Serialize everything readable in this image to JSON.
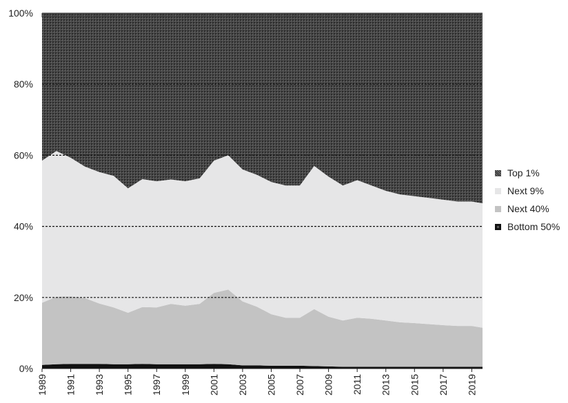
{
  "chart_data": {
    "type": "area",
    "stacked": true,
    "percent": true,
    "x": [
      1989,
      1990,
      1991,
      1992,
      1993,
      1994,
      1995,
      1996,
      1997,
      1998,
      1999,
      2000,
      2001,
      2002,
      2003,
      2004,
      2005,
      2006,
      2007,
      2008,
      2009,
      2010,
      2011,
      2012,
      2013,
      2014,
      2015,
      2016,
      2017,
      2018,
      2019,
      2019.75
    ],
    "series": [
      {
        "name": "Bottom 50%",
        "color": "#111111",
        "values": [
          1.0,
          1.2,
          1.3,
          1.3,
          1.3,
          1.2,
          1.2,
          1.3,
          1.2,
          1.2,
          1.2,
          1.2,
          1.3,
          1.2,
          0.9,
          0.9,
          0.8,
          0.8,
          0.8,
          0.7,
          0.6,
          0.5,
          0.5,
          0.5,
          0.5,
          0.5,
          0.5,
          0.5,
          0.5,
          0.5,
          0.5,
          0.5
        ]
      },
      {
        "name": "Next 40%",
        "color": "#c3c3c3",
        "values": [
          17.5,
          19.0,
          19.0,
          18.5,
          17.0,
          16.0,
          14.5,
          16.0,
          16.0,
          17.0,
          16.5,
          17.0,
          20.0,
          21.0,
          18.0,
          16.5,
          14.5,
          13.5,
          13.5,
          16.0,
          14.0,
          13.0,
          13.8,
          13.5,
          13.0,
          12.5,
          12.3,
          12.0,
          11.7,
          11.5,
          11.5,
          11.0
        ]
      },
      {
        "name": "Next 9%",
        "color": "#e6e6e7",
        "values": [
          40.0,
          41.0,
          39.0,
          37.0,
          37.0,
          37.0,
          35.0,
          36.0,
          35.5,
          35.0,
          35.0,
          35.3,
          37.2,
          37.8,
          37.1,
          37.1,
          37.2,
          37.2,
          37.2,
          40.3,
          39.4,
          38.0,
          38.7,
          37.5,
          36.5,
          36.0,
          35.7,
          35.5,
          35.3,
          35.0,
          35.0,
          35.0
        ]
      },
      {
        "name": "Top 1%",
        "color": "#4a4a4a",
        "values": [
          41.5,
          38.8,
          40.7,
          43.2,
          44.7,
          45.8,
          49.3,
          46.7,
          47.3,
          46.8,
          47.3,
          46.5,
          41.5,
          40.0,
          44.0,
          45.5,
          47.5,
          48.5,
          48.5,
          43.0,
          46.0,
          48.5,
          47.0,
          48.5,
          50.0,
          51.0,
          51.5,
          52.0,
          52.5,
          53.0,
          53.0,
          53.5
        ]
      }
    ],
    "ylim": [
      0,
      100
    ],
    "yticks": [
      "0%",
      "20%",
      "40%",
      "60%",
      "80%",
      "100%"
    ],
    "xticks": [
      "1989",
      "1991",
      "1993",
      "1995",
      "1997",
      "1999",
      "2001",
      "2003",
      "2005",
      "2007",
      "2009",
      "2011",
      "2013",
      "2015",
      "2017",
      "2019"
    ],
    "title": "",
    "xlabel": "",
    "ylabel": "",
    "grid": "horizontal dashed",
    "legend_position": "right",
    "legend": [
      "Top 1%",
      "Next 9%",
      "Next 40%",
      "Bottom 50%"
    ]
  }
}
